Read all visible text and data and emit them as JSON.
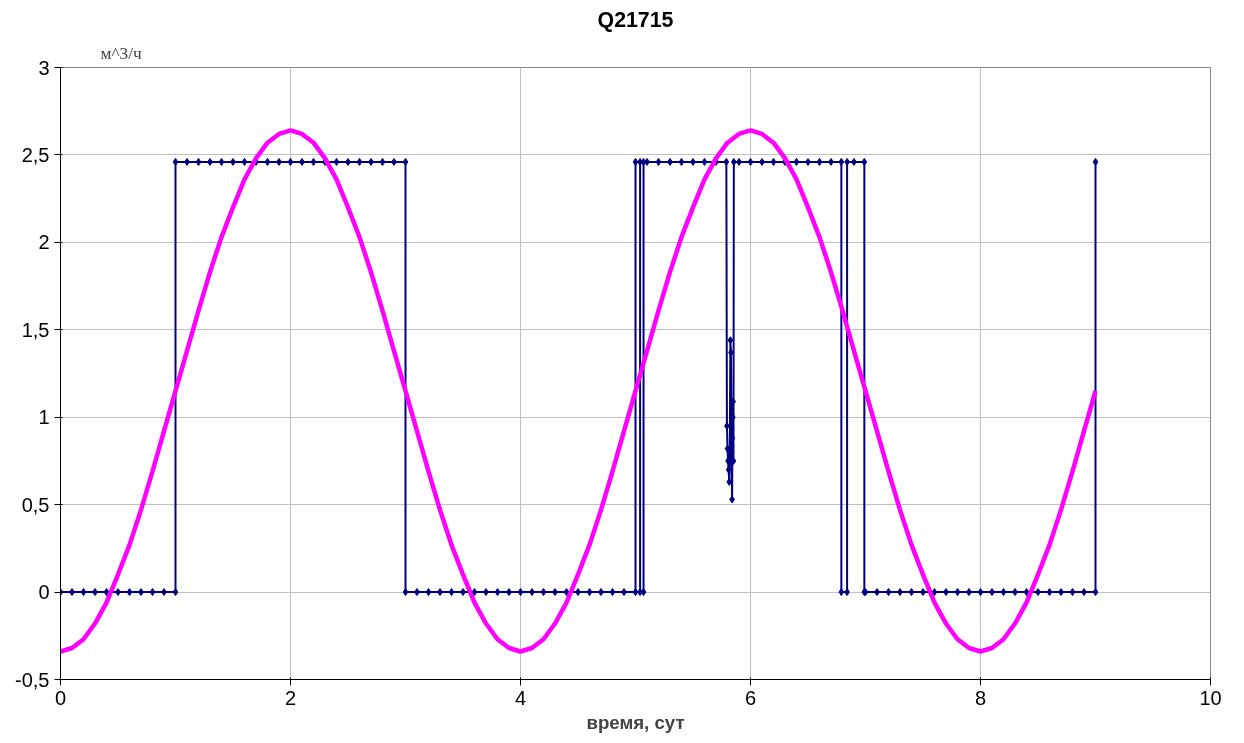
{
  "chart_data": {
    "type": "line",
    "title": "Q21715",
    "xlabel": "время, сут",
    "ylabel": "м^3/ч",
    "xlim": [
      0,
      10
    ],
    "xticks": [
      0,
      2,
      4,
      6,
      8,
      10
    ],
    "ylim": [
      -0.5,
      3
    ],
    "yticks": [
      {
        "value": -0.5,
        "label": "-0,5"
      },
      0,
      {
        "value": 0.5,
        "label": "0,5"
      },
      1,
      {
        "value": 1.5,
        "label": "1,5"
      },
      2,
      {
        "value": 2.5,
        "label": "2,5"
      },
      3
    ],
    "grid": true,
    "line_style": "solid",
    "series": [
      {
        "color": "#000080",
        "marker": "diamond",
        "x": [
          0,
          0.1,
          0.2,
          0.3,
          0.4,
          0.5,
          0.6,
          0.7,
          0.8,
          0.9,
          1.0,
          1.0,
          1.1,
          1.2,
          1.3,
          1.4,
          1.5,
          1.6,
          1.7,
          1.8,
          1.9,
          2.0,
          2.1,
          2.2,
          2.3,
          2.4,
          2.5,
          2.6,
          2.7,
          2.8,
          2.9,
          3.0,
          3.0,
          3.1,
          3.2,
          3.3,
          3.4,
          3.5,
          3.6,
          3.7,
          3.8,
          3.9,
          4.0,
          4.1,
          4.2,
          4.3,
          4.4,
          4.5,
          4.6,
          4.7,
          4.8,
          4.9,
          5.0,
          5.0,
          5.04,
          5.04,
          5.07,
          5.07,
          5.1,
          5.2,
          5.3,
          5.4,
          5.5,
          5.6,
          5.7,
          5.79,
          5.795,
          5.8,
          5.805,
          5.81,
          5.815,
          5.82,
          5.825,
          5.83,
          5.835,
          5.84,
          5.843,
          5.846,
          5.849,
          5.852,
          5.855,
          5.9,
          6.0,
          6.1,
          6.2,
          6.3,
          6.4,
          6.5,
          6.6,
          6.7,
          6.79,
          6.79,
          6.84,
          6.84,
          6.9,
          6.99,
          6.99,
          7.0,
          7.1,
          7.2,
          7.3,
          7.4,
          7.5,
          7.6,
          7.7,
          7.8,
          7.9,
          8.0,
          8.1,
          8.2,
          8.3,
          8.4,
          8.5,
          8.6,
          8.7,
          8.8,
          8.9,
          9.0,
          9.0
        ],
        "values": [
          0,
          0,
          0,
          0,
          0,
          0,
          0,
          0,
          0,
          0,
          0,
          2.46,
          2.46,
          2.46,
          2.46,
          2.46,
          2.46,
          2.46,
          2.46,
          2.46,
          2.46,
          2.46,
          2.46,
          2.46,
          2.46,
          2.46,
          2.46,
          2.46,
          2.46,
          2.46,
          2.46,
          2.46,
          0,
          0,
          0,
          0,
          0,
          0,
          0,
          0,
          0,
          0,
          0,
          0,
          0,
          0,
          0,
          0,
          0,
          0,
          0,
          0,
          0,
          2.46,
          2.46,
          0,
          0,
          2.46,
          2.46,
          2.46,
          2.46,
          2.46,
          2.46,
          2.46,
          2.46,
          2.46,
          0.95,
          0.82,
          0.75,
          0.7,
          0.63,
          0.78,
          1.44,
          1.37,
          0.8,
          0.53,
          0.88,
          1.0,
          1.09,
          0.75,
          2.46,
          2.46,
          2.46,
          2.46,
          2.46,
          2.46,
          2.46,
          2.46,
          2.46,
          2.46,
          2.46,
          0,
          0,
          2.46,
          2.46,
          2.46,
          0,
          0,
          0,
          0,
          0,
          0,
          0,
          0,
          0,
          0,
          0,
          0,
          0,
          0,
          0,
          0,
          0,
          0,
          0,
          0,
          0,
          0,
          2.46
        ]
      },
      {
        "color": "#ff00ff",
        "marker": "none",
        "x": [
          0,
          0.1,
          0.2,
          0.3,
          0.4,
          0.5,
          0.6,
          0.7,
          0.8,
          0.9,
          1.0,
          1.1,
          1.2,
          1.3,
          1.4,
          1.5,
          1.6,
          1.7,
          1.8,
          1.9,
          2.0,
          2.1,
          2.2,
          2.3,
          2.4,
          2.5,
          2.6,
          2.7,
          2.8,
          2.9,
          3.0,
          3.1,
          3.2,
          3.3,
          3.4,
          3.5,
          3.6,
          3.7,
          3.8,
          3.9,
          4.0,
          4.1,
          4.2,
          4.3,
          4.4,
          4.5,
          4.6,
          4.7,
          4.8,
          4.9,
          5.0,
          5.1,
          5.2,
          5.3,
          5.4,
          5.5,
          5.6,
          5.7,
          5.8,
          5.9,
          6.0,
          6.1,
          6.2,
          6.3,
          6.4,
          6.5,
          6.6,
          6.7,
          6.8,
          6.9,
          7.0,
          7.1,
          7.2,
          7.3,
          7.4,
          7.5,
          7.6,
          7.7,
          7.8,
          7.9,
          8.0,
          8.1,
          8.2,
          8.3,
          8.4,
          8.5,
          8.6,
          8.7,
          8.8,
          8.9,
          9.0
        ],
        "values": [
          -0.34,
          -0.32,
          -0.27,
          -0.18,
          -0.06,
          0.1,
          0.27,
          0.47,
          0.69,
          0.92,
          1.15,
          1.38,
          1.61,
          1.83,
          2.03,
          2.2,
          2.36,
          2.48,
          2.57,
          2.62,
          2.64,
          2.62,
          2.57,
          2.48,
          2.36,
          2.2,
          2.03,
          1.83,
          1.61,
          1.38,
          1.15,
          0.92,
          0.69,
          0.47,
          0.27,
          0.1,
          -0.06,
          -0.18,
          -0.27,
          -0.32,
          -0.34,
          -0.32,
          -0.27,
          -0.18,
          -0.06,
          0.1,
          0.27,
          0.47,
          0.69,
          0.92,
          1.15,
          1.38,
          1.61,
          1.83,
          2.03,
          2.2,
          2.36,
          2.48,
          2.57,
          2.62,
          2.64,
          2.62,
          2.57,
          2.48,
          2.36,
          2.2,
          2.03,
          1.83,
          1.61,
          1.38,
          1.15,
          0.92,
          0.69,
          0.47,
          0.27,
          0.1,
          -0.06,
          -0.18,
          -0.27,
          -0.32,
          -0.34,
          -0.32,
          -0.27,
          -0.18,
          -0.06,
          0.1,
          0.27,
          0.47,
          0.69,
          0.92,
          1.15
        ]
      }
    ]
  }
}
